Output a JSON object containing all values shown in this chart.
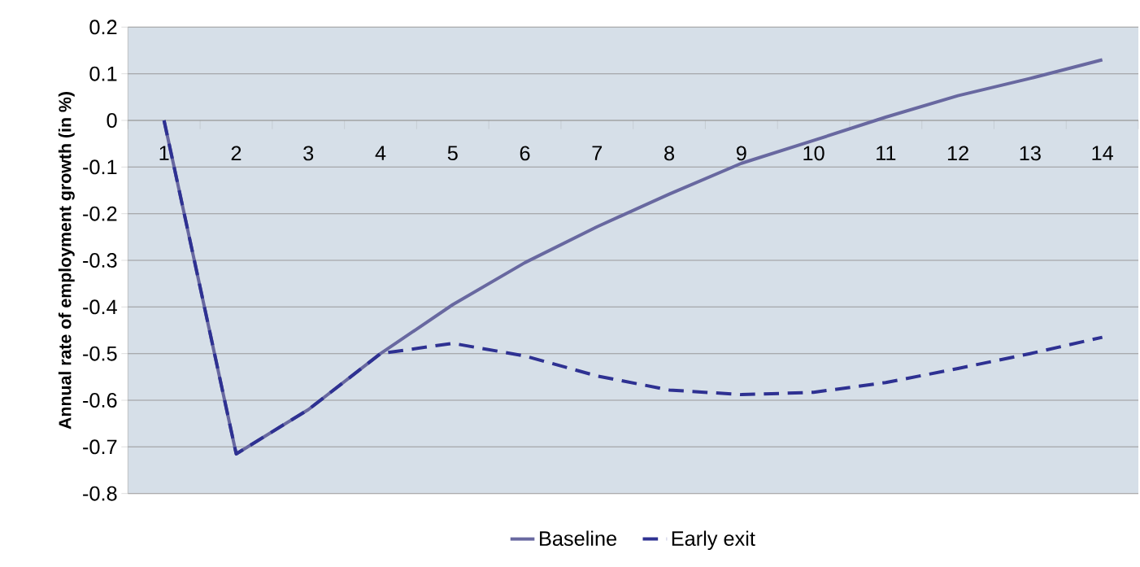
{
  "chart_data": {
    "type": "line",
    "ylabel": "Annual rate of employment growth (in %)",
    "categories": [
      "1",
      "2",
      "3",
      "4",
      "5",
      "6",
      "7",
      "8",
      "9",
      "10",
      "11",
      "12",
      "13",
      "14"
    ],
    "series": [
      {
        "name": "Baseline",
        "color": "#6868a0",
        "line_style": "solid",
        "values": [
          0,
          -0.715,
          -0.62,
          -0.5,
          -0.395,
          -0.305,
          -0.228,
          -0.158,
          -0.092,
          -0.043,
          0.007,
          0.053,
          0.09,
          0.13
        ]
      },
      {
        "name": "Early exit",
        "color": "#2e3192",
        "line_style": "dashed",
        "values": [
          0,
          -0.715,
          -0.62,
          -0.5,
          -0.478,
          -0.505,
          -0.548,
          -0.578,
          -0.588,
          -0.583,
          -0.562,
          -0.532,
          -0.5,
          -0.465
        ]
      }
    ],
    "ylim": [
      -0.8,
      0.2
    ],
    "yticks": [
      -0.8,
      -0.7,
      -0.6,
      -0.5,
      -0.4,
      -0.3,
      -0.2,
      -0.1,
      0,
      0.1,
      0.2
    ],
    "grid": "y",
    "legend": "bottom",
    "marker": "none"
  }
}
